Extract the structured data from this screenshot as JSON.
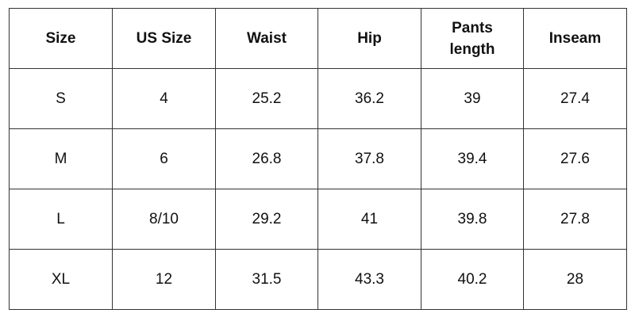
{
  "table": {
    "header": [
      "Size",
      "US Size",
      "Waist",
      "Hip",
      "Pants length",
      "Inseam"
    ],
    "rows": [
      [
        "S",
        "4",
        "25.2",
        "36.2",
        "39",
        "27.4"
      ],
      [
        "M",
        "6",
        "26.8",
        "37.8",
        "39.4",
        "27.6"
      ],
      [
        "L",
        "8/10",
        "29.2",
        "41",
        "39.8",
        "27.8"
      ],
      [
        "XL",
        "12",
        "31.5",
        "43.3",
        "40.2",
        "28"
      ]
    ]
  }
}
